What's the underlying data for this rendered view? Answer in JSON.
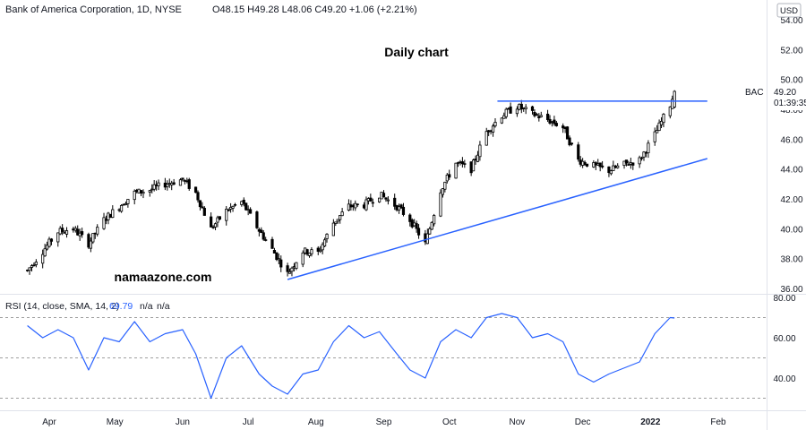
{
  "header": {
    "symbol_text": "Bank of America Corporation, 1D, NYSE",
    "ohlc_text": "O48.15  H49.28  L48.06  C49.20  +1.06 (+2.21%)",
    "currency": "USD"
  },
  "annotations": {
    "chart_title": "Daily chart",
    "watermark": "namaazone.com",
    "ticker_label": "BAC",
    "last_price": "49.20",
    "countdown": "01:39:35"
  },
  "rsi_panel": {
    "label": "RSI (14, close, SMA, 14, 2)",
    "value": "69.79",
    "na1": "n/a",
    "na2": "n/a"
  },
  "colors": {
    "line": "#2962ff",
    "candle": "#000000",
    "label_box": "#ffffff",
    "grid_dash": "#9e9e9e",
    "border": "#e0e3eb",
    "text": "#131722"
  },
  "chart_data": [
    {
      "type": "candlestick",
      "title": "",
      "price_axis_ticks": [
        "54.00",
        "52.00",
        "50.00",
        "48.00",
        "46.00",
        "44.00",
        "42.00",
        "40.00",
        "38.00",
        "36.00"
      ],
      "ylim": [
        35.8,
        55.5
      ],
      "time_axis_ticks": [
        "Apr",
        "May",
        "Jun",
        "Jul",
        "Aug",
        "Sep",
        "Oct",
        "Nov",
        "Dec",
        "2022",
        "Feb"
      ],
      "close_path": [
        [
          "2021-03-22",
          37.2
        ],
        [
          "2021-03-29",
          38.5
        ],
        [
          "2021-04-05",
          39.8
        ],
        [
          "2021-04-12",
          40.0
        ],
        [
          "2021-04-19",
          39.0
        ],
        [
          "2021-04-26",
          40.6
        ],
        [
          "2021-05-03",
          41.5
        ],
        [
          "2021-05-10",
          42.4
        ],
        [
          "2021-05-17",
          42.6
        ],
        [
          "2021-05-24",
          43.0
        ],
        [
          "2021-06-01",
          43.3
        ],
        [
          "2021-06-07",
          42.4
        ],
        [
          "2021-06-14",
          40.0
        ],
        [
          "2021-06-21",
          41.2
        ],
        [
          "2021-06-28",
          41.8
        ],
        [
          "2021-07-06",
          39.9
        ],
        [
          "2021-07-12",
          38.6
        ],
        [
          "2021-07-19",
          37.0
        ],
        [
          "2021-07-26",
          38.5
        ],
        [
          "2021-08-02",
          38.4
        ],
        [
          "2021-08-09",
          40.4
        ],
        [
          "2021-08-16",
          41.5
        ],
        [
          "2021-08-23",
          41.6
        ],
        [
          "2021-08-30",
          42.3
        ],
        [
          "2021-09-07",
          41.5
        ],
        [
          "2021-09-13",
          40.6
        ],
        [
          "2021-09-20",
          39.0
        ],
        [
          "2021-09-27",
          42.6
        ],
        [
          "2021-10-04",
          44.4
        ],
        [
          "2021-10-11",
          44.0
        ],
        [
          "2021-10-18",
          46.5
        ],
        [
          "2021-10-25",
          47.6
        ],
        [
          "2021-11-01",
          48.2
        ],
        [
          "2021-11-08",
          47.7
        ],
        [
          "2021-11-15",
          47.3
        ],
        [
          "2021-11-22",
          46.8
        ],
        [
          "2021-11-29",
          44.6
        ],
        [
          "2021-12-06",
          44.2
        ],
        [
          "2021-12-13",
          43.9
        ],
        [
          "2021-12-20",
          44.3
        ],
        [
          "2021-12-27",
          44.6
        ],
        [
          "2022-01-03",
          46.3
        ],
        [
          "2022-01-10",
          48.3
        ],
        [
          "2022-01-12",
          49.2
        ]
      ],
      "last_bar": {
        "open": 48.15,
        "high": 49.28,
        "low": 48.06,
        "close": 49.2,
        "change": 1.06,
        "change_pct": 2.21
      },
      "series": [
        {
          "name": "",
          "kind": "resistance",
          "points": [
            [
              "2021-10-23",
              48.55
            ],
            [
              "2022-01-27",
              48.55
            ]
          ]
        },
        {
          "name": "",
          "kind": "support",
          "points": [
            [
              "2021-07-19",
              36.6
            ],
            [
              "2022-01-27",
              44.7
            ]
          ]
        }
      ]
    },
    {
      "type": "line",
      "title": "RSI (14, close, SMA, 14, 2)",
      "ylim": [
        25,
        82
      ],
      "axis_ticks": [
        "80.00",
        "60.00",
        "40.00"
      ],
      "level_lines": [
        70,
        50,
        30
      ],
      "series": [
        {
          "name": "",
          "values": [
            [
              "2021-03-22",
              66
            ],
            [
              "2021-03-29",
              60
            ],
            [
              "2021-04-05",
              64
            ],
            [
              "2021-04-12",
              60
            ],
            [
              "2021-04-19",
              44
            ],
            [
              "2021-04-26",
              60
            ],
            [
              "2021-05-03",
              58
            ],
            [
              "2021-05-10",
              68
            ],
            [
              "2021-05-17",
              58
            ],
            [
              "2021-05-24",
              62
            ],
            [
              "2021-06-01",
              64
            ],
            [
              "2021-06-07",
              52
            ],
            [
              "2021-06-14",
              30
            ],
            [
              "2021-06-21",
              50
            ],
            [
              "2021-06-28",
              56
            ],
            [
              "2021-07-06",
              42
            ],
            [
              "2021-07-12",
              36
            ],
            [
              "2021-07-19",
              32
            ],
            [
              "2021-07-26",
              42
            ],
            [
              "2021-08-02",
              44
            ],
            [
              "2021-08-09",
              58
            ],
            [
              "2021-08-16",
              66
            ],
            [
              "2021-08-23",
              60
            ],
            [
              "2021-08-30",
              63
            ],
            [
              "2021-09-07",
              52
            ],
            [
              "2021-09-13",
              44
            ],
            [
              "2021-09-20",
              40
            ],
            [
              "2021-09-27",
              58
            ],
            [
              "2021-10-04",
              64
            ],
            [
              "2021-10-11",
              60
            ],
            [
              "2021-10-18",
              70
            ],
            [
              "2021-10-25",
              72
            ],
            [
              "2021-11-01",
              70
            ],
            [
              "2021-11-08",
              60
            ],
            [
              "2021-11-15",
              62
            ],
            [
              "2021-11-22",
              58
            ],
            [
              "2021-11-29",
              42
            ],
            [
              "2021-12-06",
              38
            ],
            [
              "2021-12-13",
              42
            ],
            [
              "2021-12-20",
              45
            ],
            [
              "2021-12-27",
              48
            ],
            [
              "2022-01-03",
              62
            ],
            [
              "2022-01-10",
              70
            ],
            [
              "2022-01-12",
              69.79
            ]
          ]
        }
      ]
    }
  ]
}
